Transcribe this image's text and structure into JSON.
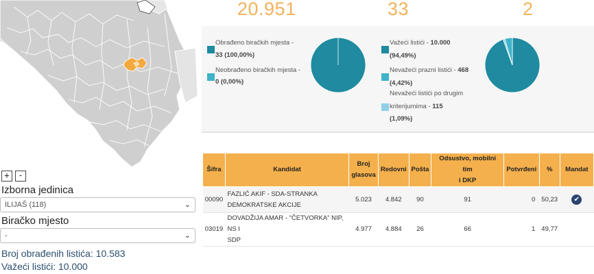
{
  "summary": {
    "total": "20.951",
    "processed_places": "33",
    "third": "2"
  },
  "colors": {
    "accent": "#f2b25c",
    "teal": "#1f8aa0",
    "light_teal": "#3fb3c9",
    "pale_blue": "#8fd0e6",
    "header_orange": "#f4b04c",
    "check_navy": "#2b4470"
  },
  "places_chart": {
    "processed_label": "Obrađeno biračkih mjesta -",
    "processed_value": "33 (100,00%)",
    "unprocessed_label": "Neobrađeno biračkih mjesta -",
    "unprocessed_value": "0 (0,00%)",
    "processed_pct": 100,
    "unprocessed_pct": 0
  },
  "ballots_chart": {
    "valid_label": "Važeći listići -",
    "valid_value": "10.000",
    "valid_pct_text": "(94,49%)",
    "empty_label": "Nevažeći prazni listići -",
    "empty_value": "468",
    "empty_pct_text": "(4,42%)",
    "other_label_1": "Nevažeći listići po drugim",
    "other_label_2": "kriterijumima -",
    "other_value": "115",
    "other_pct_text": "(1,09%)",
    "valid_pct": 94.49,
    "empty_pct": 4.42,
    "other_pct": 1.09
  },
  "map": {
    "zoom_in": "+",
    "zoom_out": "-"
  },
  "filters": {
    "unit_label": "Izborna jedinica",
    "unit_value": "ILIJAŠ (118)",
    "place_label": "Biračko mjesto",
    "place_value": "-"
  },
  "totals": {
    "processed_ballots": "Broj obrađenih listića: 10.583",
    "valid_ballots": "Važeći listići: 10.000"
  },
  "table": {
    "headers": {
      "code": "Šifra",
      "candidate": "Kandidat",
      "votes_1": "Broj",
      "votes_2": "glasova",
      "regular": "Redovni",
      "post": "Pošta",
      "absent_1": "Odsustvo, mobilni tim",
      "absent_2": "i DKP",
      "confirmed": "Potvrđeni",
      "percent": "%",
      "mandate": "Mandat"
    },
    "rows": [
      {
        "code": "00090",
        "name_1": "FAZLIĆ AKIF - SDA-STRANKA",
        "name_2": "DEMOKRATSKE AKCIJE",
        "votes": "5.023",
        "regular": "4.842",
        "post": "90",
        "absent": "91",
        "confirmed": "0",
        "percent": "50,23",
        "mandate": "✔"
      },
      {
        "code": "03019",
        "name_1": "DOVADŽIJA AMAR - \"ČETVORKA\" NIP, NS I",
        "name_2": "SDP",
        "votes": "4.977",
        "regular": "4.884",
        "post": "26",
        "absent": "66",
        "confirmed": "1",
        "percent": "49,77",
        "mandate": ""
      }
    ]
  }
}
